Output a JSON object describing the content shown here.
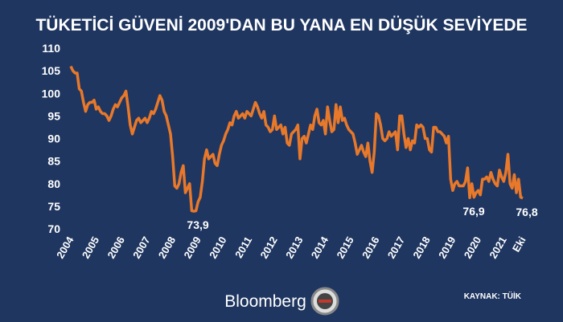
{
  "chart_data": {
    "type": "line",
    "title": "TÜKETİCİ GÜVENİ 2009'DAN BU YANA EN DÜŞÜK SEVİYEDE",
    "source": "KAYNAK: TÜİK",
    "brand": "Bloomberg",
    "categories": [
      "2004",
      null,
      null,
      null,
      null,
      null,
      null,
      null,
      null,
      null,
      null,
      null,
      "2005",
      null,
      null,
      null,
      null,
      null,
      null,
      null,
      null,
      null,
      null,
      null,
      "2006",
      null,
      null,
      null,
      null,
      null,
      null,
      null,
      null,
      null,
      null,
      null,
      "2007",
      null,
      null,
      null,
      null,
      null,
      null,
      null,
      null,
      null,
      null,
      null,
      "2008",
      null,
      null,
      null,
      null,
      null,
      null,
      null,
      null,
      null,
      null,
      null,
      "2009",
      null,
      null,
      null,
      null,
      null,
      null,
      null,
      null,
      null,
      null,
      null,
      "2010",
      null,
      null,
      null,
      null,
      null,
      null,
      null,
      null,
      null,
      null,
      null,
      "2011",
      null,
      null,
      null,
      null,
      null,
      null,
      null,
      null,
      null,
      null,
      null,
      "2012",
      null,
      null,
      null,
      null,
      null,
      null,
      null,
      null,
      null,
      null,
      null,
      "2013",
      null,
      null,
      null,
      null,
      null,
      null,
      null,
      null,
      null,
      null,
      null,
      "2014",
      null,
      null,
      null,
      null,
      null,
      null,
      null,
      null,
      null,
      null,
      null,
      "2015",
      null,
      null,
      null,
      null,
      null,
      null,
      null,
      null,
      null,
      null,
      null,
      "2016",
      null,
      null,
      null,
      null,
      null,
      null,
      null,
      null,
      null,
      null,
      null,
      "2017",
      null,
      null,
      null,
      null,
      null,
      null,
      null,
      null,
      null,
      null,
      null,
      "2018",
      null,
      null,
      null,
      null,
      null,
      null,
      null,
      null,
      null,
      null,
      null,
      "2019",
      null,
      null,
      null,
      null,
      null,
      null,
      null,
      null,
      null,
      null,
      null,
      "2020",
      null,
      null,
      null,
      null,
      null,
      null,
      null,
      null,
      null,
      null,
      null,
      "2021",
      null,
      null,
      null,
      null,
      null,
      null,
      null,
      null,
      "Eki"
    ],
    "values": [
      106,
      105,
      104.5,
      104.5,
      101,
      100.5,
      98,
      96,
      97.5,
      98,
      98,
      98.5,
      96.5,
      97,
      96,
      95.5,
      95.5,
      95,
      94,
      95,
      96.5,
      97.5,
      97,
      98,
      99,
      99.5,
      100.5,
      97,
      93,
      91,
      92.5,
      94,
      94.5,
      93.5,
      94,
      94.5,
      93.5,
      94.5,
      96,
      95.5,
      96.5,
      98,
      99.5,
      98.5,
      96,
      95,
      93,
      91,
      86,
      79.5,
      79,
      80,
      82.5,
      84,
      78,
      79,
      80,
      74,
      73.9,
      74,
      76,
      77,
      80.5,
      85.5,
      87.5,
      85.5,
      86,
      86.5,
      84.5,
      84,
      86.5,
      88.5,
      89.5,
      91,
      92,
      93.5,
      93,
      95,
      96,
      94.5,
      95,
      95.5,
      94.5,
      96,
      95.5,
      95,
      96.5,
      98,
      97,
      95.5,
      94.5,
      96,
      93,
      92.5,
      91.5,
      92,
      95,
      92,
      92.5,
      93,
      91,
      92.5,
      89,
      88.5,
      91,
      91.5,
      92,
      93,
      85.5,
      90,
      90.5,
      89,
      91,
      93,
      92,
      95,
      96.5,
      93.5,
      93,
      94,
      91,
      97,
      94,
      91.5,
      92,
      97.5,
      93.5,
      97,
      94,
      94.5,
      93,
      92,
      91.5,
      91,
      89,
      86.5,
      87.5,
      88.5,
      87,
      86,
      89,
      85,
      82.5,
      87,
      95.5,
      95,
      93,
      90,
      89.5,
      90,
      91.5,
      90.5,
      91,
      91.5,
      87.5,
      95,
      95,
      91,
      88,
      90,
      87.5,
      89.5,
      89,
      93,
      92.5,
      93,
      92.5,
      90,
      90,
      87.5,
      87,
      92.5,
      92.5,
      91.5,
      91.5,
      91,
      90.5,
      89,
      90.5,
      81,
      78.5,
      80,
      80.5,
      79.5,
      79.5,
      79.5,
      80.5,
      83.5,
      76.9,
      80,
      77,
      78,
      78.5,
      77.5,
      81,
      81,
      81.5,
      80.5,
      82.5,
      81,
      80,
      79.5,
      83,
      81.5,
      80.5,
      82.5,
      86.5,
      80,
      79,
      82,
      78,
      81,
      77,
      76.8
    ],
    "value_labels": [
      null,
      null,
      null,
      null,
      null,
      null,
      null,
      null,
      null,
      null,
      null,
      null,
      null,
      null,
      null,
      null,
      null,
      null,
      null,
      null,
      null,
      null,
      null,
      null,
      null,
      null,
      null,
      null,
      null,
      null,
      null,
      null,
      null,
      null,
      null,
      null,
      null,
      null,
      null,
      null,
      null,
      null,
      null,
      null,
      null,
      null,
      null,
      null,
      null,
      null,
      null,
      null,
      null,
      null,
      null,
      null,
      null,
      null,
      "73,9",
      null,
      null,
      null,
      null,
      null,
      null,
      null,
      null,
      null,
      null,
      null,
      null,
      null,
      null,
      null,
      null,
      null,
      null,
      null,
      null,
      null,
      null,
      null,
      null,
      null,
      null,
      null,
      null,
      null,
      null,
      null,
      null,
      null,
      null,
      null,
      null,
      null,
      null,
      null,
      null,
      null,
      null,
      null,
      null,
      null,
      null,
      null,
      null,
      null,
      null,
      null,
      null,
      null,
      null,
      null,
      null,
      null,
      null,
      null,
      null,
      null,
      null,
      null,
      null,
      null,
      null,
      null,
      null,
      null,
      null,
      null,
      null,
      null,
      null,
      null,
      null,
      null,
      null,
      null,
      null,
      null,
      null,
      null,
      null,
      null,
      null,
      null,
      null,
      null,
      null,
      null,
      null,
      null,
      null,
      null,
      null,
      null,
      null,
      null,
      null,
      null,
      null,
      null,
      null,
      null,
      null,
      null,
      null,
      null,
      null,
      null,
      null,
      null,
      null,
      null,
      null,
      null,
      null,
      null,
      null,
      null,
      null,
      null,
      null,
      null,
      null,
      null,
      null,
      null,
      "76,9",
      null,
      null,
      null,
      null,
      null,
      null,
      null,
      null,
      null,
      null,
      null,
      null,
      null,
      null,
      null,
      null,
      null,
      null,
      null,
      null,
      null,
      null,
      null,
      null,
      "76,8"
    ],
    "color": "#e8782a",
    "ylim": [
      70,
      110
    ],
    "yticks": [
      70,
      75,
      80,
      85,
      90,
      95,
      100,
      105,
      110
    ],
    "grid": false
  }
}
